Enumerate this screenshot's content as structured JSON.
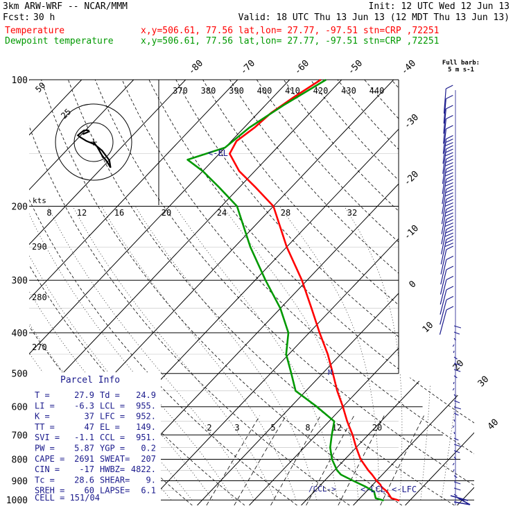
{
  "header": {
    "model": "3km ARW-WRF -- NCAR/MMM",
    "init": "Init: 12 UTC Wed 12 Jun 13",
    "fcst_label": "Fcst:",
    "fcst_value": "30 h",
    "valid": "Valid: 18 UTC Thu 13 Jun 13 (12 MDT Thu 13 Jun 13)",
    "lines": [
      {
        "name": "Temperature",
        "info": "x,y=506.61, 77.56  lat,lon= 27.77, -97.51  stn=CRP ,72251",
        "color": "#ff0000"
      },
      {
        "name": "Dewpoint temperature",
        "info": "x,y=506.61, 77.56  lat,lon= 27.77, -97.51  stn=CRP ,72251",
        "color": "#009900"
      }
    ]
  },
  "barb_legend": {
    "title": "Full barb:",
    "value": "5 m s-1"
  },
  "hodograph": {
    "kts_label": "kts",
    "ring_labels": [
      "25",
      "50"
    ]
  },
  "parcel_info": {
    "title": "Parcel Info",
    "rows": [
      [
        "T   =",
        "27.9",
        "Td =",
        "24.9"
      ],
      [
        "LI  =",
        "-6.3",
        "LCL =",
        "955."
      ],
      [
        "K   =",
        "37",
        "LFC =",
        "952."
      ],
      [
        "TT  =",
        "47",
        "EL  =",
        "149."
      ],
      [
        "SVI =",
        "-1.1",
        "CCL =",
        "951."
      ],
      [
        "PW  =",
        "5.87",
        "YGP =",
        "0.2"
      ],
      [
        "CAPE =",
        "2691",
        "SWEAT=",
        "207"
      ],
      [
        "CIN  =",
        "-17",
        "HWBZ=",
        "4822."
      ],
      [
        "Tc  =",
        "28.6",
        "SHEAR=",
        "9."
      ],
      [
        "SREH =",
        "60",
        "LAPSE=",
        "6.1"
      ]
    ],
    "cell": "CELL = 151/04"
  },
  "level_markers": {
    "el": "<-EL",
    "lcl": "<-LCL",
    "lfc": "<-LFC",
    "ccl": "/CCL->",
    "m": "M"
  },
  "chart_data": {
    "type": "line",
    "title": "",
    "xlabel": "",
    "ylabel": "",
    "pressure_levels": [
      100,
      200,
      300,
      400,
      500,
      600,
      700,
      800,
      900,
      1000
    ],
    "plim": [
      100,
      1030
    ],
    "skewt_isotherms": [
      -80,
      -70,
      -60,
      -50,
      -40,
      -30,
      -20,
      -10,
      0,
      10,
      20,
      30,
      40
    ],
    "theta_labels": [
      370,
      380,
      390,
      400,
      410,
      420,
      430,
      440
    ],
    "theta_left_labels": [
      290,
      280,
      270
    ],
    "mixing_ratio_labels": [
      2,
      3,
      5,
      8,
      12,
      20
    ],
    "kts_labels": [
      8,
      12,
      16,
      20,
      24,
      28,
      32
    ],
    "series": [
      {
        "name": "Temperature",
        "color": "#ff0000",
        "points": [
          [
            1003,
            28.0
          ],
          [
            990,
            26.0
          ],
          [
            955,
            24.0
          ],
          [
            930,
            22.0
          ],
          [
            920,
            21.5
          ],
          [
            900,
            20.0
          ],
          [
            870,
            18.0
          ],
          [
            850,
            16.5
          ],
          [
            800,
            13.0
          ],
          [
            750,
            10.0
          ],
          [
            700,
            7.0
          ],
          [
            650,
            3.5
          ],
          [
            600,
            0.0
          ],
          [
            550,
            -4.0
          ],
          [
            500,
            -8.0
          ],
          [
            450,
            -12.5
          ],
          [
            400,
            -18.0
          ],
          [
            350,
            -24.0
          ],
          [
            300,
            -31.0
          ],
          [
            250,
            -40.0
          ],
          [
            200,
            -50.0
          ],
          [
            180,
            -57.0
          ],
          [
            165,
            -63.0
          ],
          [
            150,
            -68.0
          ],
          [
            140,
            -69.0
          ],
          [
            130,
            -68.0
          ],
          [
            120,
            -67.5
          ],
          [
            110,
            -66.0
          ],
          [
            100,
            -64.0
          ]
        ]
      },
      {
        "name": "Dewpoint temperature",
        "color": "#009900",
        "points": [
          [
            1003,
            25.0
          ],
          [
            990,
            23.0
          ],
          [
            955,
            21.5
          ],
          [
            930,
            19.0
          ],
          [
            900,
            15.5
          ],
          [
            870,
            12.0
          ],
          [
            850,
            10.5
          ],
          [
            800,
            7.5
          ],
          [
            750,
            5.0
          ],
          [
            700,
            3.0
          ],
          [
            650,
            1.0
          ],
          [
            600,
            -5.0
          ],
          [
            550,
            -12.0
          ],
          [
            500,
            -16.0
          ],
          [
            450,
            -20.5
          ],
          [
            400,
            -24.0
          ],
          [
            350,
            -30.0
          ],
          [
            300,
            -38.0
          ],
          [
            250,
            -47.0
          ],
          [
            200,
            -57.0
          ],
          [
            180,
            -64.0
          ],
          [
            165,
            -70.0
          ],
          [
            155,
            -75.0
          ],
          [
            145,
            -70.0
          ],
          [
            130,
            -69.0
          ],
          [
            115,
            -66.5
          ],
          [
            100,
            -63.0
          ]
        ]
      }
    ],
    "hodograph": [
      [
        0.0,
        0.0
      ],
      [
        1.5,
        -2.0
      ],
      [
        3.5,
        -5.5
      ],
      [
        5.5,
        -8.0
      ],
      [
        7.0,
        -10.5
      ],
      [
        6.5,
        -7.5
      ],
      [
        3.5,
        -3.5
      ],
      [
        0.5,
        -1.0
      ],
      [
        -3.0,
        0.5
      ],
      [
        -5.5,
        2.0
      ],
      [
        -6.5,
        2.8
      ],
      [
        -4.8,
        4.2
      ],
      [
        -4.0,
        4.8
      ],
      [
        -2.5,
        4.9
      ],
      [
        -2.0,
        4.3
      ],
      [
        -4.5,
        3.2
      ]
    ]
  }
}
